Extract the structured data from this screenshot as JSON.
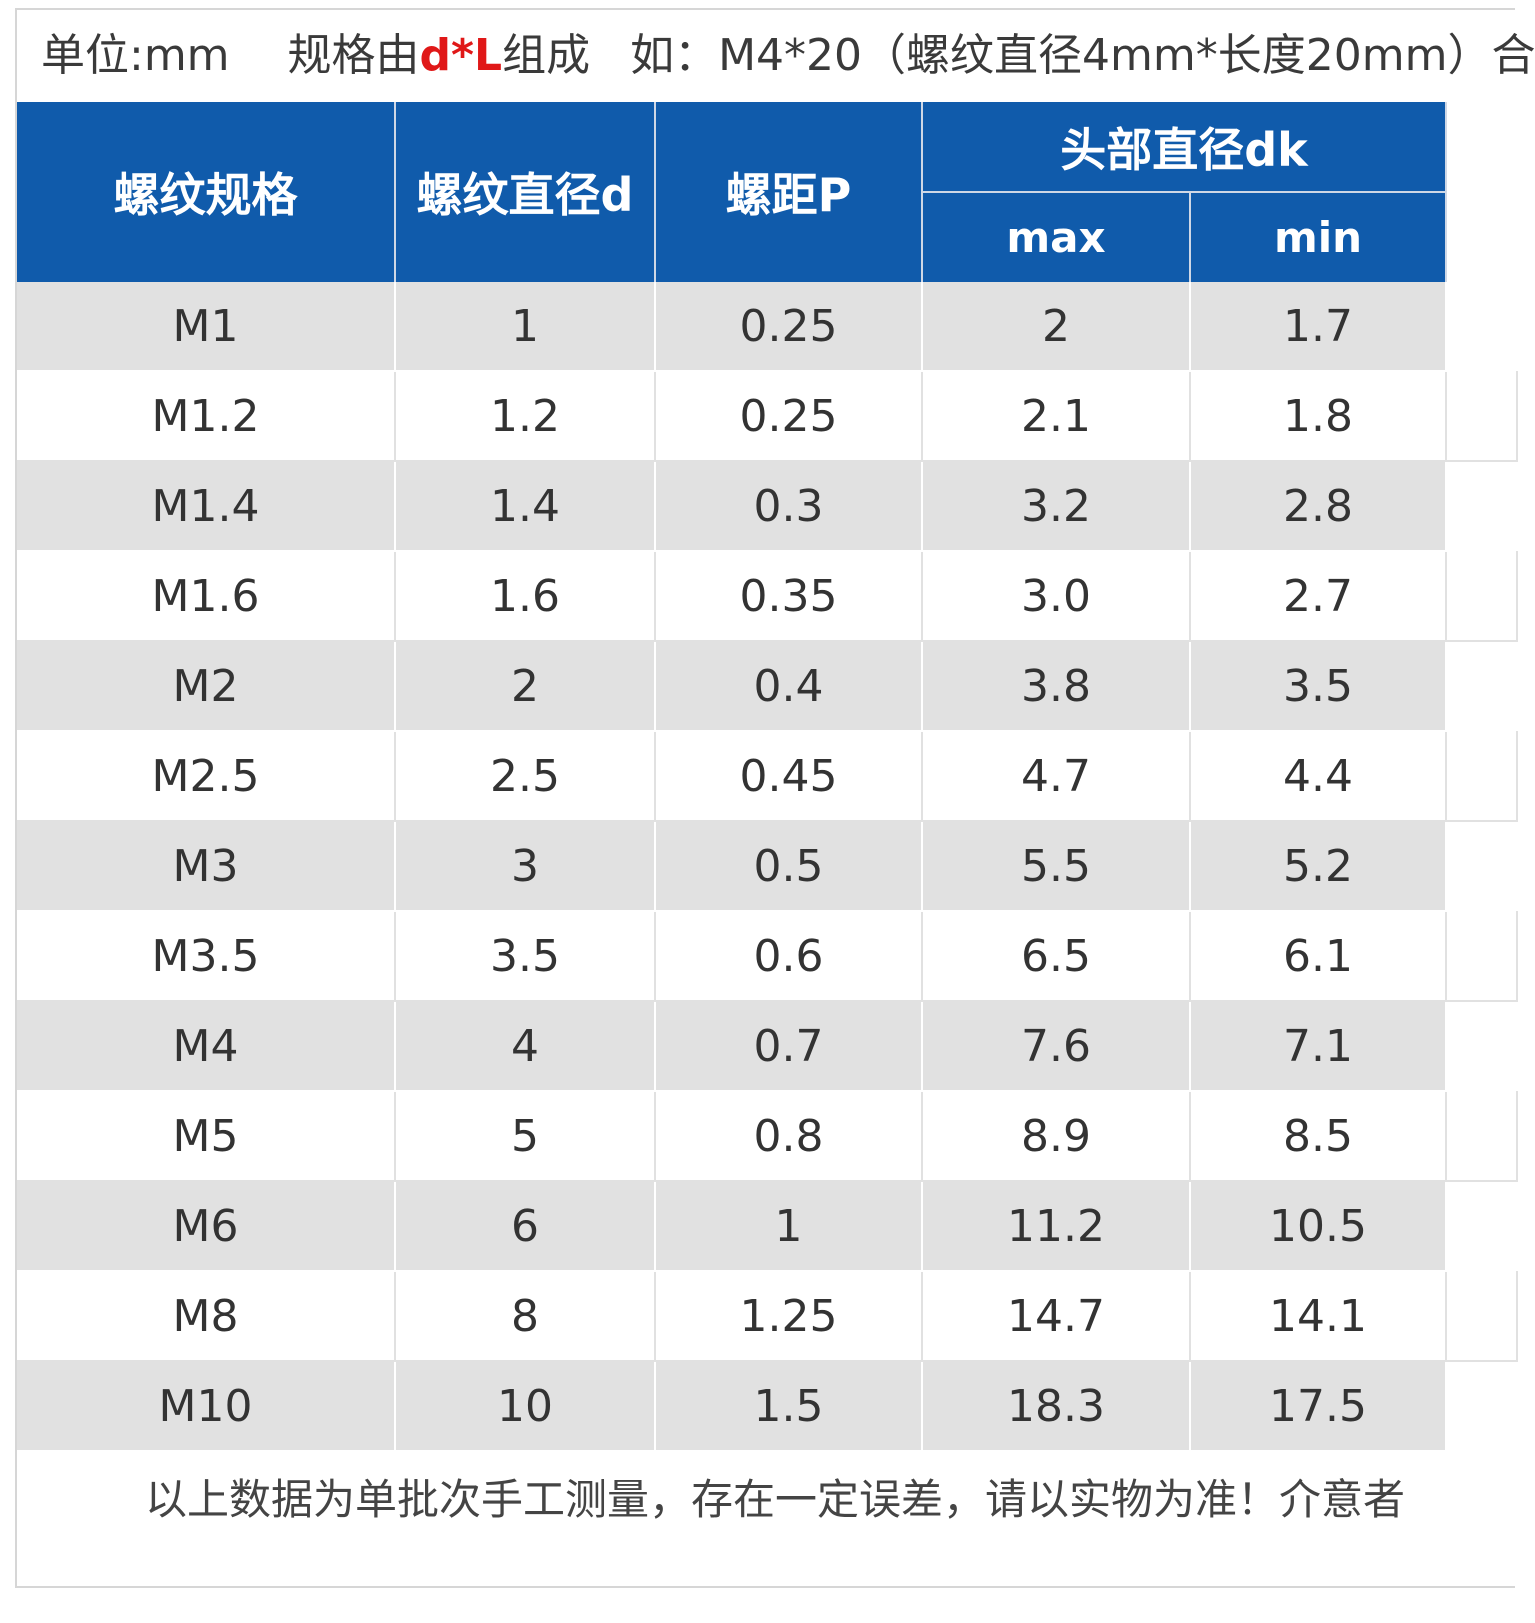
{
  "note_top": {
    "unit": "单位:mm",
    "spec_prefix": "规格由",
    "spec_highlight": "d*L",
    "spec_suffix": "组成",
    "example": "如：M4*20（螺纹直径4mm*长度20mm）合"
  },
  "table": {
    "headers": {
      "spec": "螺纹规格",
      "diameter": "螺纹直径d",
      "pitch": "螺距P",
      "head_group": "头部直径dk",
      "max": "max",
      "min": "min"
    },
    "colors": {
      "header_bg": "#105bab",
      "row_alt_bg": "#e1e1e1",
      "highlight": "#e01818"
    },
    "rows": [
      {
        "spec": "M1",
        "d": "1",
        "p": "0.25",
        "max": "2",
        "min": "1.7"
      },
      {
        "spec": "M1.2",
        "d": "1.2",
        "p": "0.25",
        "max": "2.1",
        "min": "1.8"
      },
      {
        "spec": "M1.4",
        "d": "1.4",
        "p": "0.3",
        "max": "3.2",
        "min": "2.8"
      },
      {
        "spec": "M1.6",
        "d": "1.6",
        "p": "0.35",
        "max": "3.0",
        "min": "2.7"
      },
      {
        "spec": "M2",
        "d": "2",
        "p": "0.4",
        "max": "3.8",
        "min": "3.5"
      },
      {
        "spec": "M2.5",
        "d": "2.5",
        "p": "0.45",
        "max": "4.7",
        "min": "4.4"
      },
      {
        "spec": "M3",
        "d": "3",
        "p": "0.5",
        "max": "5.5",
        "min": "5.2"
      },
      {
        "spec": "M3.5",
        "d": "3.5",
        "p": "0.6",
        "max": "6.5",
        "min": "6.1"
      },
      {
        "spec": "M4",
        "d": "4",
        "p": "0.7",
        "max": "7.6",
        "min": "7.1"
      },
      {
        "spec": "M5",
        "d": "5",
        "p": "0.8",
        "max": "8.9",
        "min": "8.5"
      },
      {
        "spec": "M6",
        "d": "6",
        "p": "1",
        "max": "11.2",
        "min": "10.5"
      },
      {
        "spec": "M8",
        "d": "8",
        "p": "1.25",
        "max": "14.7",
        "min": "14.1"
      },
      {
        "spec": "M10",
        "d": "10",
        "p": "1.5",
        "max": "18.3",
        "min": "17.5"
      }
    ]
  },
  "note_bottom": "以上数据为单批次手工测量，存在一定误差，请以实物为准！介意者"
}
